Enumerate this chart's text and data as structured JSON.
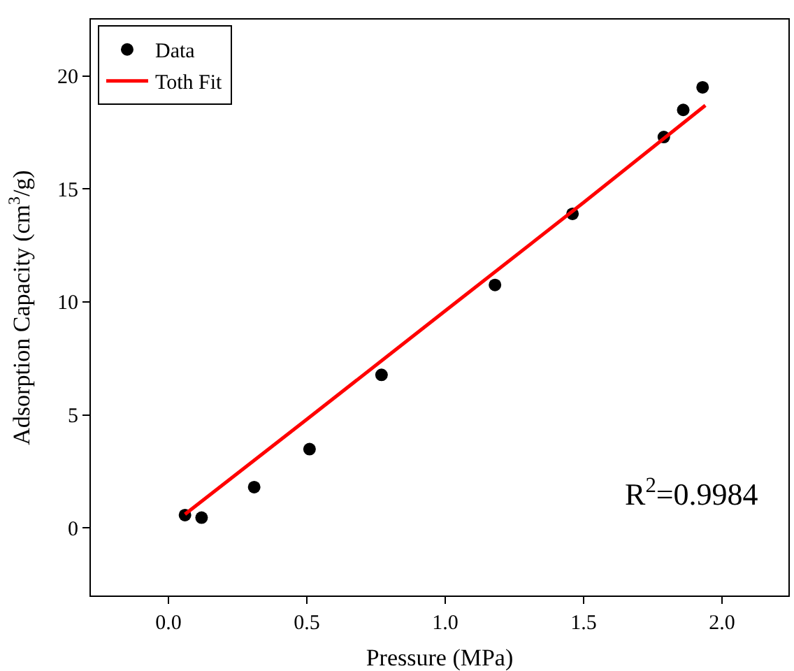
{
  "chart_data": {
    "type": "scatter",
    "xlabel": "Pressure (MPa)",
    "ylabel": "Adsorption Capacity (cm$^{3}$/g)",
    "xlim": [
      -0.28,
      2.24
    ],
    "xticks": [
      {
        "value": 0,
        "label": "0.0"
      },
      0.5,
      {
        "value": 1,
        "label": "1.0"
      },
      1.5,
      {
        "value": 2,
        "label": "2.0"
      }
    ],
    "ylim": [
      -3,
      22.5
    ],
    "yticks": [
      0,
      5,
      10,
      15,
      20
    ],
    "grid": false,
    "legend": "top left",
    "marker": "circle",
    "series": [
      {
        "name": "Data",
        "type": "scatter",
        "color": "#000000",
        "x": [
          0.06,
          0.12,
          0.31,
          0.51,
          0.77,
          1.18,
          1.46,
          1.79,
          1.86,
          1.93
        ],
        "values": [
          0.56,
          0.45,
          1.8,
          3.48,
          6.77,
          10.75,
          13.9,
          17.3,
          18.5,
          19.5
        ]
      },
      {
        "name": "Toth Fit",
        "type": "line",
        "marker": "none",
        "line_style": "solid",
        "color": "#ff0000",
        "x": [
          0.06,
          0.5,
          1.0,
          1.5,
          1.94
        ],
        "values": [
          0.6,
          4.8,
          9.6,
          14.4,
          18.7
        ]
      }
    ],
    "annotations": [
      "R$^{2}$=0.9984"
    ]
  }
}
